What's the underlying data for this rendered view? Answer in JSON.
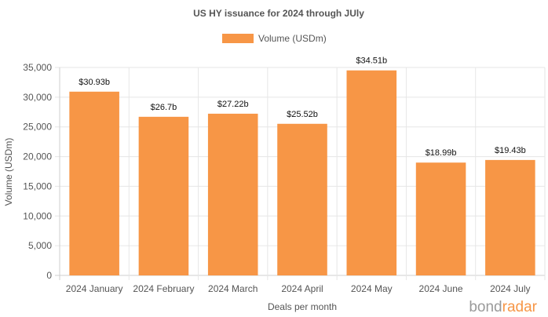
{
  "chart_data": {
    "type": "bar",
    "title": "US HY issuance for 2024 through JUly",
    "categories": [
      "2024 January",
      "2024 February",
      "2024 March",
      "2024 April",
      "2024 May",
      "2024 June",
      "2024 July"
    ],
    "series": [
      {
        "name": "Volume (USDm)",
        "values": [
          30930,
          26700,
          27220,
          25520,
          34510,
          18990,
          19430
        ],
        "data_labels": [
          "$30.93b",
          "$26.7b",
          "$27.22b",
          "$25.52b",
          "$34.51b",
          "$18.99b",
          "$19.43b"
        ],
        "color": "#f79646"
      }
    ],
    "xlabel": "Deals per month",
    "ylabel": "Volume (USDm)",
    "ylim": [
      0,
      35000
    ],
    "yticks": [
      0,
      5000,
      10000,
      15000,
      20000,
      25000,
      30000,
      35000
    ],
    "ytick_labels": [
      "0",
      "5,000",
      "10,000",
      "15,000",
      "20,000",
      "25,000",
      "30,000",
      "35,000"
    ],
    "grid": true,
    "legend_position": "top-center"
  },
  "branding": {
    "part1": "bond",
    "part2": "radar",
    "color1": "#9a9a9a",
    "color2": "#f79646"
  }
}
